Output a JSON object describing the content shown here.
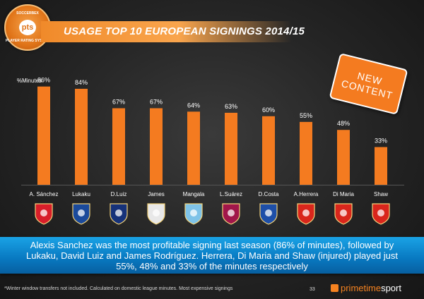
{
  "header": {
    "title": "USAGE TOP 10 EUROPEAN SIGNINGS 2014/15",
    "logo": {
      "top_text": "SOCCERBEX",
      "center": "pts",
      "bottom_text": "PLAYER RATING SYSTEM"
    },
    "badge": "NEW CONTENT"
  },
  "chart_data": {
    "type": "bar",
    "ylabel": "%Minutes",
    "ylim": [
      0,
      100
    ],
    "grid": false,
    "categories": [
      "A. Sánchez",
      "Lukaku",
      "D.Luiz",
      "James",
      "Mangala",
      "L.Suárez",
      "D.Costa",
      "A.Herrera",
      "Di Maria",
      "Shaw"
    ],
    "values": [
      86,
      84,
      67,
      67,
      64,
      63,
      60,
      55,
      48,
      33
    ],
    "value_labels": [
      "86%",
      "84%",
      "67%",
      "67%",
      "64%",
      "63%",
      "60%",
      "55%",
      "48%",
      "33%"
    ],
    "bar_color": "#f47b20",
    "club_icons": [
      "arsenal-crest-icon",
      "everton-crest-icon",
      "psg-crest-icon",
      "real-madrid-crest-icon",
      "man-city-crest-icon",
      "barcelona-crest-icon",
      "chelsea-crest-icon",
      "man-united-crest-icon",
      "man-united-crest-icon",
      "man-united-crest-icon"
    ],
    "club_colors": [
      "#d81e2a",
      "#1b4a9b",
      "#16327a",
      "#e8e8e8",
      "#7fc3e8",
      "#a1164a",
      "#1e4fa8",
      "#d9261c",
      "#d9261c",
      "#d9261c"
    ]
  },
  "callout": {
    "text": "Alexis Sanchez was the most profitable signing last season (86% of minutes), followed by Lukaku, David Luiz and James Rodríguez. Herrera, Di Maria and Shaw (injured) played just 55%, 48% and 33% of the minutes respectively"
  },
  "footer": {
    "footnote": "*Winter window transfers not included. Calculated on domestic league minutes. Most expensive signings",
    "page_number": "33",
    "brand_primary": "primetime",
    "brand_secondary": "sport"
  }
}
